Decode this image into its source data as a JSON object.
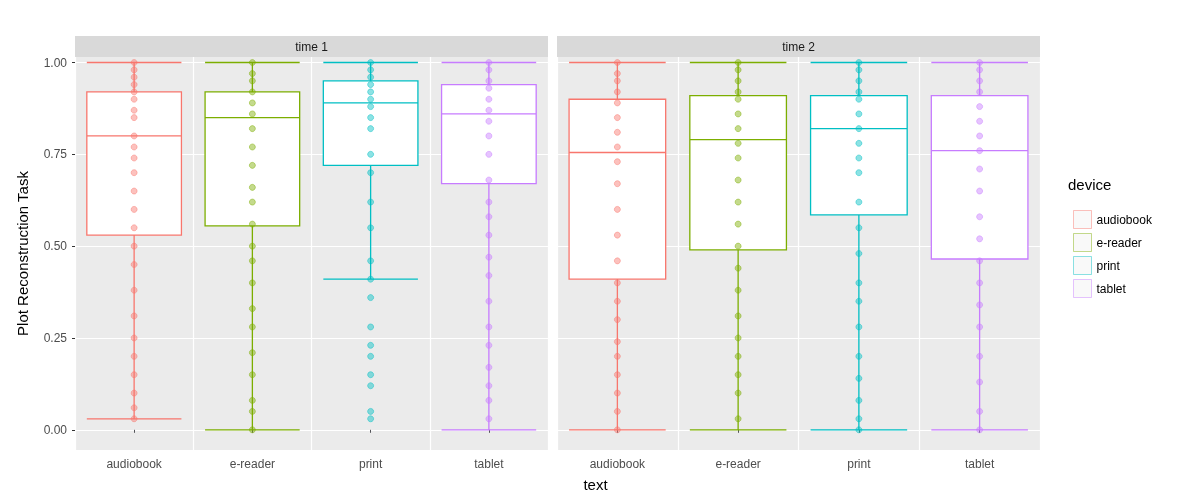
{
  "chart_data": [
    {
      "type": "box",
      "title": "time 1",
      "ylabel": "Plot Reconstruction Task",
      "xlabel": "text",
      "categories": [
        "audiobook",
        "e-reader",
        "print",
        "tablet"
      ],
      "colors": [
        "#f8766d",
        "#7cae00",
        "#00bfc4",
        "#c77cff"
      ],
      "boxes": [
        {
          "low": 0.03,
          "q1": 0.53,
          "median": 0.8,
          "q3": 0.92,
          "high": 1.0
        },
        {
          "low": 0.0,
          "q1": 0.555,
          "median": 0.85,
          "q3": 0.92,
          "high": 1.0
        },
        {
          "low": 0.41,
          "q1": 0.72,
          "median": 0.89,
          "q3": 0.95,
          "high": 1.0
        },
        {
          "low": 0.0,
          "q1": 0.67,
          "median": 0.86,
          "q3": 0.94,
          "high": 1.0
        }
      ],
      "series": [
        {
          "type": "scatter",
          "color": "#f8766d",
          "x": [
            "audiobook",
            "audiobook",
            "audiobook",
            "audiobook",
            "audiobook",
            "audiobook",
            "audiobook",
            "audiobook",
            "audiobook",
            "audiobook",
            "audiobook",
            "audiobook",
            "audiobook",
            "audiobook",
            "audiobook",
            "audiobook",
            "audiobook",
            "audiobook",
            "audiobook",
            "audiobook",
            "audiobook",
            "audiobook",
            "audiobook",
            "audiobook",
            "audiobook"
          ],
          "values": [
            1.0,
            0.98,
            0.96,
            0.94,
            0.92,
            0.9,
            0.87,
            0.85,
            0.8,
            0.77,
            0.74,
            0.7,
            0.65,
            0.6,
            0.55,
            0.5,
            0.45,
            0.38,
            0.31,
            0.25,
            0.2,
            0.15,
            0.1,
            0.06,
            0.03
          ]
        },
        {
          "type": "scatter",
          "color": "#7cae00",
          "x": [
            "e-reader",
            "e-reader",
            "e-reader",
            "e-reader",
            "e-reader",
            "e-reader",
            "e-reader",
            "e-reader",
            "e-reader",
            "e-reader",
            "e-reader",
            "e-reader",
            "e-reader",
            "e-reader",
            "e-reader",
            "e-reader",
            "e-reader",
            "e-reader",
            "e-reader",
            "e-reader",
            "e-reader",
            "e-reader"
          ],
          "values": [
            1.0,
            0.97,
            0.95,
            0.92,
            0.89,
            0.86,
            0.82,
            0.77,
            0.72,
            0.66,
            0.62,
            0.56,
            0.5,
            0.46,
            0.4,
            0.33,
            0.28,
            0.21,
            0.15,
            0.08,
            0.05,
            0.0
          ]
        },
        {
          "type": "scatter",
          "color": "#00bfc4",
          "x": [
            "print",
            "print",
            "print",
            "print",
            "print",
            "print",
            "print",
            "print",
            "print",
            "print",
            "print",
            "print",
            "print",
            "print",
            "print",
            "print",
            "print",
            "print",
            "print",
            "print",
            "print",
            "print",
            "print"
          ],
          "values": [
            1.0,
            0.98,
            0.96,
            0.94,
            0.92,
            0.9,
            0.88,
            0.85,
            0.82,
            0.75,
            0.7,
            0.62,
            0.55,
            0.46,
            0.41,
            0.36,
            0.28,
            0.23,
            0.2,
            0.15,
            0.12,
            0.05,
            0.03
          ]
        },
        {
          "type": "scatter",
          "color": "#c77cff",
          "x": [
            "tablet",
            "tablet",
            "tablet",
            "tablet",
            "tablet",
            "tablet",
            "tablet",
            "tablet",
            "tablet",
            "tablet",
            "tablet",
            "tablet",
            "tablet",
            "tablet",
            "tablet",
            "tablet",
            "tablet",
            "tablet",
            "tablet",
            "tablet",
            "tablet",
            "tablet"
          ],
          "values": [
            1.0,
            0.98,
            0.95,
            0.93,
            0.9,
            0.87,
            0.84,
            0.8,
            0.75,
            0.68,
            0.62,
            0.58,
            0.53,
            0.47,
            0.42,
            0.35,
            0.28,
            0.23,
            0.17,
            0.12,
            0.08,
            0.03
          ]
        }
      ],
      "ylim": [
        -0.055,
        1.015
      ],
      "yticks": [
        {
          "value": 0,
          "label": "0.00"
        },
        {
          "value": 0.25,
          "label": "0.25"
        },
        {
          "value": 0.5,
          "label": "0.50"
        },
        {
          "value": 0.75,
          "label": "0.75"
        },
        {
          "value": 1,
          "label": "1.00"
        }
      ],
      "grid": true,
      "legend": false
    },
    {
      "type": "box",
      "title": "time 2",
      "legend_title": "device",
      "categories": [
        "audiobook",
        "e-reader",
        "print",
        "tablet"
      ],
      "colors": [
        "#f8766d",
        "#7cae00",
        "#00bfc4",
        "#c77cff"
      ],
      "boxes": [
        {
          "low": 0.0,
          "q1": 0.41,
          "median": 0.755,
          "q3": 0.9,
          "high": 1.0
        },
        {
          "low": 0.0,
          "q1": 0.49,
          "median": 0.79,
          "q3": 0.91,
          "high": 1.0
        },
        {
          "low": 0.0,
          "q1": 0.585,
          "median": 0.82,
          "q3": 0.91,
          "high": 1.0
        },
        {
          "low": 0.0,
          "q1": 0.465,
          "median": 0.76,
          "q3": 0.91,
          "high": 1.0
        }
      ],
      "series": [
        {
          "type": "scatter",
          "name": "audiobook",
          "color": "#f8766d",
          "x": [
            "audiobook",
            "audiobook",
            "audiobook",
            "audiobook",
            "audiobook",
            "audiobook",
            "audiobook",
            "audiobook",
            "audiobook",
            "audiobook",
            "audiobook",
            "audiobook",
            "audiobook",
            "audiobook",
            "audiobook",
            "audiobook",
            "audiobook",
            "audiobook",
            "audiobook",
            "audiobook",
            "audiobook",
            "audiobook"
          ],
          "values": [
            1.0,
            0.97,
            0.95,
            0.92,
            0.89,
            0.85,
            0.81,
            0.77,
            0.73,
            0.67,
            0.6,
            0.53,
            0.46,
            0.4,
            0.35,
            0.3,
            0.24,
            0.2,
            0.15,
            0.1,
            0.05,
            0.0
          ]
        },
        {
          "type": "scatter",
          "name": "e-reader",
          "color": "#7cae00",
          "x": [
            "e-reader",
            "e-reader",
            "e-reader",
            "e-reader",
            "e-reader",
            "e-reader",
            "e-reader",
            "e-reader",
            "e-reader",
            "e-reader",
            "e-reader",
            "e-reader",
            "e-reader",
            "e-reader",
            "e-reader",
            "e-reader",
            "e-reader",
            "e-reader",
            "e-reader",
            "e-reader",
            "e-reader"
          ],
          "values": [
            1.0,
            0.98,
            0.95,
            0.92,
            0.9,
            0.86,
            0.82,
            0.78,
            0.74,
            0.68,
            0.62,
            0.56,
            0.5,
            0.44,
            0.38,
            0.31,
            0.25,
            0.2,
            0.15,
            0.1,
            0.03
          ]
        },
        {
          "type": "scatter",
          "name": "print",
          "color": "#00bfc4",
          "x": [
            "print",
            "print",
            "print",
            "print",
            "print",
            "print",
            "print",
            "print",
            "print",
            "print",
            "print",
            "print",
            "print",
            "print",
            "print",
            "print",
            "print",
            "print",
            "print",
            "print",
            "print"
          ],
          "values": [
            1.0,
            0.98,
            0.95,
            0.92,
            0.9,
            0.86,
            0.82,
            0.78,
            0.74,
            0.7,
            0.62,
            0.55,
            0.48,
            0.4,
            0.35,
            0.28,
            0.2,
            0.14,
            0.08,
            0.03,
            0.0
          ]
        },
        {
          "type": "scatter",
          "name": "tablet",
          "color": "#c77cff",
          "x": [
            "tablet",
            "tablet",
            "tablet",
            "tablet",
            "tablet",
            "tablet",
            "tablet",
            "tablet",
            "tablet",
            "tablet",
            "tablet",
            "tablet",
            "tablet",
            "tablet",
            "tablet",
            "tablet",
            "tablet",
            "tablet",
            "tablet",
            "tablet"
          ],
          "values": [
            1.0,
            0.98,
            0.95,
            0.92,
            0.88,
            0.84,
            0.8,
            0.76,
            0.71,
            0.65,
            0.58,
            0.52,
            0.46,
            0.4,
            0.34,
            0.28,
            0.2,
            0.13,
            0.05,
            0.0
          ]
        }
      ],
      "ylim": [
        -0.055,
        1.015
      ],
      "yticks": [
        0,
        0.25,
        0.5,
        0.75,
        1
      ],
      "grid": true,
      "legend": "right",
      "tick_labels": "x"
    }
  ]
}
